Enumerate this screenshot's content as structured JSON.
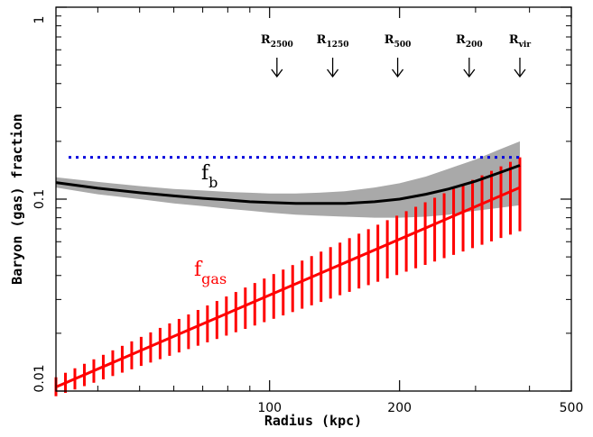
{
  "chart_data": {
    "type": "line",
    "xlabel": "Radius (kpc)",
    "ylabel": "Baryon (gas) fraction",
    "xscale": "log",
    "yscale": "log",
    "xlim": [
      32,
      500
    ],
    "ylim": [
      0.01,
      1
    ],
    "grid": false,
    "x_ticks": [
      {
        "value": 100,
        "label": "100"
      },
      {
        "value": 200,
        "label": "200"
      },
      {
        "value": 500,
        "label": "500"
      }
    ],
    "y_ticks": [
      {
        "value": 0.01,
        "label": "0.01"
      },
      {
        "value": 0.1,
        "label": "0.1"
      },
      {
        "value": 1,
        "label": "1"
      }
    ],
    "radius_markers": [
      {
        "label": "R",
        "subscript": "2500",
        "x": 104
      },
      {
        "label": "R",
        "subscript": "1250",
        "x": 140
      },
      {
        "label": "R",
        "subscript": "500",
        "x": 198
      },
      {
        "label": "R",
        "subscript": "200",
        "x": 290
      },
      {
        "label": "R",
        "subscript": "vir",
        "x": 380
      }
    ],
    "reference_line": {
      "y": 0.165,
      "style": "dotted",
      "color": "#0000dd"
    },
    "series": [
      {
        "name": "f",
        "subscript": "b",
        "color": "#000000",
        "band_color": "#a9a9a9",
        "x": [
          32,
          40,
          50,
          60,
          70,
          80,
          90,
          100,
          115,
          130,
          150,
          175,
          200,
          230,
          260,
          300,
          340,
          380
        ],
        "values": [
          0.122,
          0.114,
          0.108,
          0.104,
          0.101,
          0.099,
          0.097,
          0.096,
          0.095,
          0.095,
          0.095,
          0.097,
          0.1,
          0.106,
          0.113,
          0.124,
          0.137,
          0.15
        ],
        "upper": [
          0.13,
          0.123,
          0.117,
          0.113,
          0.111,
          0.109,
          0.108,
          0.107,
          0.107,
          0.108,
          0.11,
          0.115,
          0.121,
          0.131,
          0.144,
          0.161,
          0.181,
          0.2
        ],
        "lower": [
          0.115,
          0.106,
          0.1,
          0.095,
          0.092,
          0.089,
          0.087,
          0.085,
          0.083,
          0.082,
          0.081,
          0.08,
          0.08,
          0.081,
          0.083,
          0.087,
          0.09,
          0.093
        ]
      },
      {
        "name": "f",
        "subscript": "gas",
        "color": "#ff0000",
        "x_start": 32,
        "x_end": 380,
        "y_start": 0.0105,
        "y_end": 0.115,
        "err_start": [
          0.0094,
          0.0118
        ],
        "err_end": [
          0.068,
          0.165
        ],
        "n_errorbars": 50
      }
    ]
  }
}
